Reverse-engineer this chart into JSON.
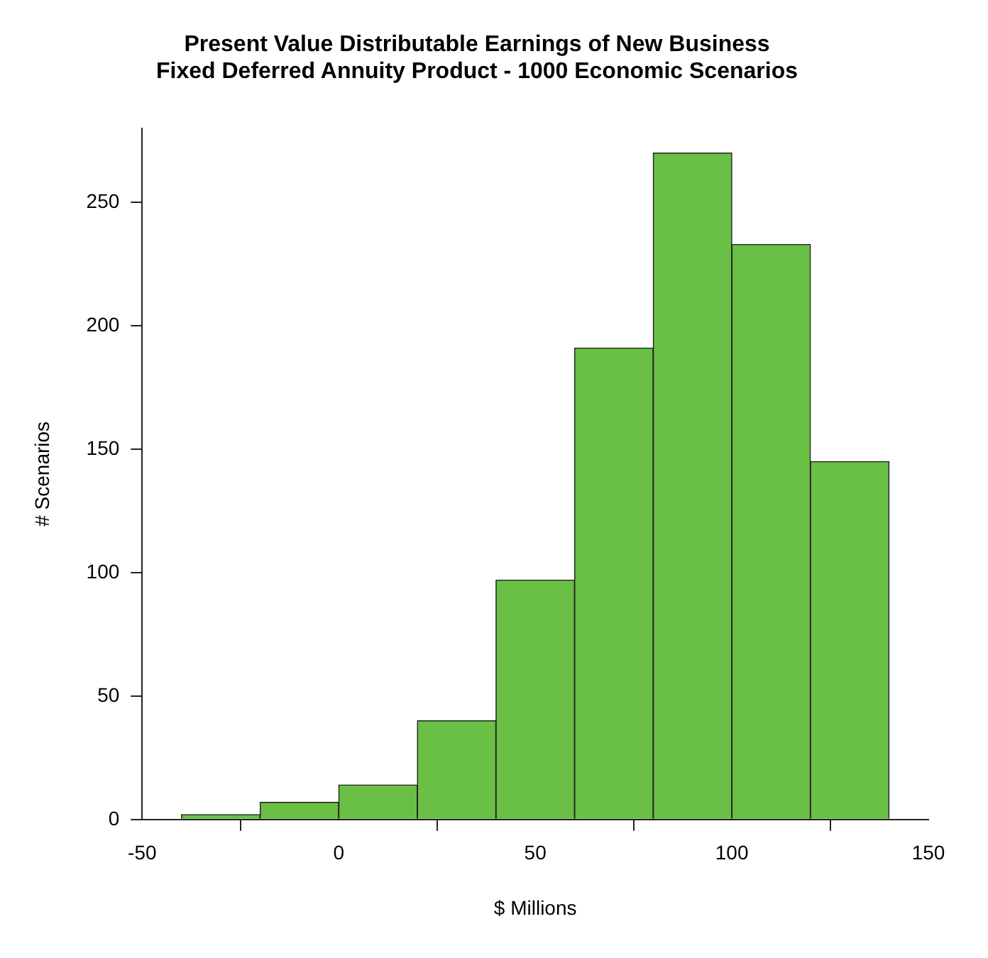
{
  "chart_data": {
    "type": "histogram",
    "title": "Present Value Distributable Earnings of New Business\nFixed Deferred Annuity Product - 1000 Economic Scenarios",
    "xlabel": "$ Millions",
    "ylabel": "# Scenarios",
    "bins": [
      -40,
      -20,
      0,
      20,
      40,
      60,
      80,
      100,
      120,
      140
    ],
    "values": [
      2,
      7,
      14,
      40,
      97,
      191,
      270,
      233,
      145
    ],
    "color": "#6abf45",
    "xlim": [
      -50,
      150
    ],
    "xticks": [
      -50,
      0,
      50,
      100,
      150
    ],
    "ylim": [
      0,
      280
    ],
    "yticks": [
      0,
      50,
      100,
      150,
      200,
      250
    ],
    "grid": false,
    "legend": false
  }
}
